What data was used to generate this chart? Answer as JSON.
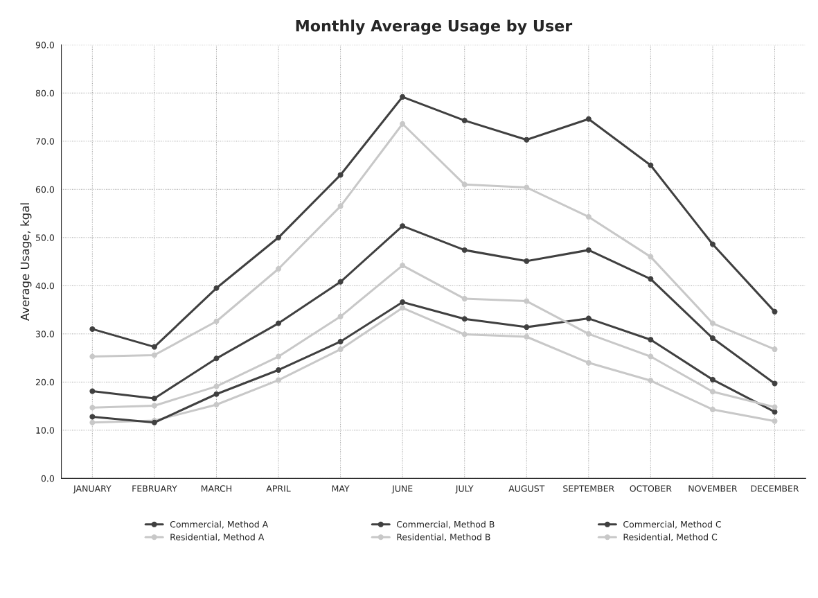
{
  "chart_data": {
    "type": "line",
    "title": "Monthly Average Usage by User",
    "ylabel": "Average Usage, kgal",
    "categories": [
      "JANUARY",
      "FEBRUARY",
      "MARCH",
      "APRIL",
      "MAY",
      "JUNE",
      "JULY",
      "AUGUST",
      "SEPTEMBER",
      "OCTOBER",
      "NOVEMBER",
      "DECEMBER"
    ],
    "series": [
      {
        "name": "Commercial, Method A",
        "color": "#404040",
        "values": [
          31.0,
          27.3,
          39.5,
          50.0,
          63.0,
          79.2,
          74.3,
          70.3,
          74.6,
          65.0,
          48.6,
          34.6
        ]
      },
      {
        "name": "Residential, Method A",
        "color": "#c8c8c8",
        "values": [
          25.3,
          25.6,
          32.6,
          43.5,
          56.5,
          73.6,
          61.0,
          60.4,
          54.3,
          46.0,
          32.2,
          26.8
        ]
      },
      {
        "name": "Commercial, Method B",
        "color": "#404040",
        "values": [
          18.1,
          16.6,
          24.9,
          32.2,
          40.8,
          52.4,
          47.4,
          45.1,
          47.4,
          41.4,
          29.1,
          19.7
        ]
      },
      {
        "name": "Residential, Method B",
        "color": "#c8c8c8",
        "values": [
          14.7,
          15.1,
          19.1,
          25.3,
          33.6,
          44.2,
          37.3,
          36.8,
          30.0,
          25.3,
          18.0,
          14.8
        ]
      },
      {
        "name": "Commercial, Method C",
        "color": "#404040",
        "values": [
          12.8,
          11.6,
          17.5,
          22.5,
          28.4,
          36.6,
          33.1,
          31.4,
          33.2,
          28.8,
          20.5,
          13.8
        ]
      },
      {
        "name": "Residential, Method C",
        "color": "#c8c8c8",
        "values": [
          11.6,
          12.0,
          15.3,
          20.4,
          26.8,
          35.4,
          29.9,
          29.4,
          24.0,
          20.3,
          14.3,
          11.9
        ]
      }
    ],
    "ylim": [
      0,
      90
    ],
    "yticks": [
      {
        "value": 0,
        "label": "0.0"
      },
      {
        "value": 10,
        "label": "10.0"
      },
      {
        "value": 20,
        "label": "20.0"
      },
      {
        "value": 30,
        "label": "30.0"
      },
      {
        "value": 40,
        "label": "40.0"
      },
      {
        "value": 50,
        "label": "50.0"
      },
      {
        "value": 60,
        "label": "60.0"
      },
      {
        "value": 70,
        "label": "70.0"
      },
      {
        "value": 80,
        "label": "80.0"
      },
      {
        "value": 90,
        "label": "90.0"
      }
    ],
    "grid": true,
    "legend": "bottom",
    "marker": "circle",
    "line_style": "solid"
  }
}
